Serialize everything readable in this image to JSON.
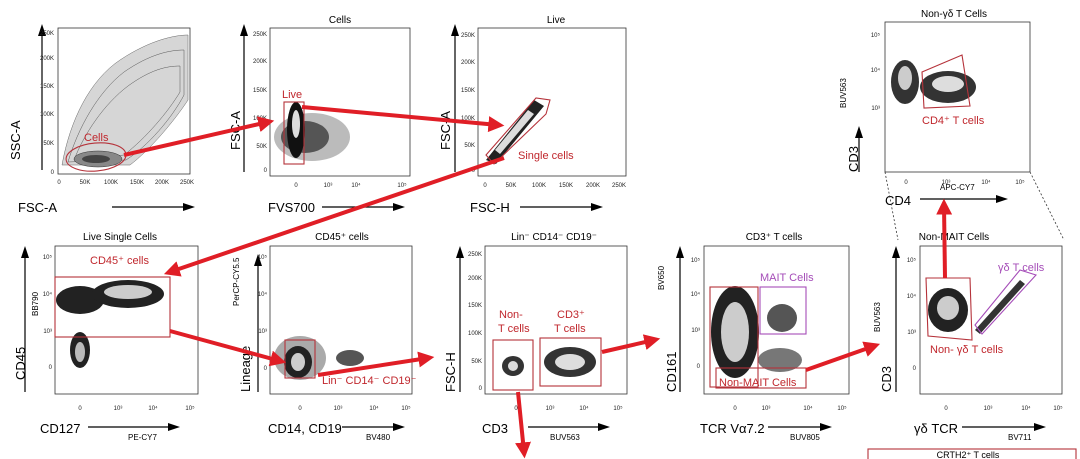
{
  "panels": [
    {
      "id": "p1",
      "title": "",
      "x_label": "FSC-A",
      "x_sub": "",
      "y_label": "SSC-A",
      "y_sub": "",
      "x_ticks": [
        "0",
        "50K",
        "100K",
        "150K",
        "200K",
        "250K"
      ],
      "y_ticks": [
        "0",
        "50K",
        "100K",
        "150K",
        "200K",
        "250K"
      ],
      "gates": [
        {
          "label": "Cells"
        }
      ]
    },
    {
      "id": "p2",
      "title": "Cells",
      "x_label": "FVS700",
      "x_sub": "",
      "y_label": "FSC-A",
      "y_sub": "",
      "x_ticks": [
        "0",
        "10³",
        "10⁴",
        "10⁵"
      ],
      "y_ticks": [
        "0",
        "50K",
        "100K",
        "150K",
        "200K",
        "250K"
      ],
      "gates": [
        {
          "label": "Live"
        }
      ]
    },
    {
      "id": "p3",
      "title": "Live",
      "x_label": "FSC-H",
      "x_sub": "",
      "y_label": "FSC-A",
      "y_sub": "",
      "x_ticks": [
        "0",
        "50K",
        "100K",
        "150K",
        "200K",
        "250K"
      ],
      "y_ticks": [
        "0",
        "50K",
        "100K",
        "150K",
        "200K",
        "250K"
      ],
      "gates": [
        {
          "label": "Single cells"
        }
      ]
    },
    {
      "id": "p4",
      "title": "Non-γδ T Cells",
      "x_label": "CD4",
      "x_sub": "APC-CY7",
      "y_label": "CD3",
      "y_sub": "BUV563",
      "x_ticks": [
        "0",
        "10³",
        "10⁴",
        "10⁵"
      ],
      "y_ticks": [
        "10⁵",
        "10⁴",
        "10³"
      ],
      "gates": [
        {
          "label": "CD4⁺ T cells"
        }
      ]
    },
    {
      "id": "p5",
      "title": "Live Single Cells",
      "x_label": "CD127",
      "x_sub": "PE-CY7",
      "y_label": "CD45",
      "y_sub": "BB790",
      "x_ticks": [
        "0",
        "10³",
        "10⁴",
        "10⁵"
      ],
      "y_ticks": [
        "10⁵",
        "10⁴",
        "10³",
        "0"
      ],
      "gates": [
        {
          "label": "CD45⁺ cells"
        }
      ]
    },
    {
      "id": "p6",
      "title": "CD45⁺ cells",
      "x_label": "CD14, CD19",
      "x_sub": "BV480",
      "y_label": "Lineage",
      "y_sub": "PerCP-CY5.5",
      "x_ticks": [
        "0",
        "10³",
        "10⁴",
        "10⁵"
      ],
      "y_ticks": [
        "10⁵",
        "10⁴",
        "10³",
        "0"
      ],
      "gates": [
        {
          "label": "Lin⁻ CD14⁻ CD19⁻"
        }
      ]
    },
    {
      "id": "p7",
      "title": "Lin⁻ CD14⁻ CD19⁻",
      "x_label": "CD3",
      "x_sub": "BUV563",
      "y_label": "FSC-H",
      "y_sub": "",
      "x_ticks": [
        "0",
        "10³",
        "10⁴",
        "10⁵"
      ],
      "y_ticks": [
        "250K",
        "200K",
        "150K",
        "100K",
        "50K",
        "0"
      ],
      "gates": [
        {
          "label": "Non-",
          "label2": "T cells"
        },
        {
          "label": "CD3⁺",
          "label2": "T cells"
        }
      ]
    },
    {
      "id": "p8",
      "title": "CD3⁺ T cells",
      "x_label": "TCR Vα7.2",
      "x_sub": "BUV805",
      "y_label": "CD161",
      "y_sub": "BV650",
      "x_ticks": [
        "0",
        "10³",
        "10⁴",
        "10⁵"
      ],
      "y_ticks": [
        "10⁵",
        "10⁴",
        "10³",
        "0"
      ],
      "gates": [
        {
          "label": "MAIT Cells"
        },
        {
          "label": "Non-MAIT Cells"
        }
      ]
    },
    {
      "id": "p9",
      "title": "Non-MAIT Cells",
      "x_label": "γδ TCR",
      "x_sub": "BV711",
      "y_label": "CD3",
      "y_sub": "BUV563",
      "x_ticks": [
        "0",
        "10³",
        "10⁴",
        "10⁵"
      ],
      "y_ticks": [
        "10⁵",
        "10⁴",
        "10³",
        "0"
      ],
      "gates": [
        {
          "label": "γδ T cells"
        },
        {
          "label": "Non- γδ T cells"
        }
      ]
    }
  ],
  "partial_panel": {
    "title": "CRTH2⁺ T cells"
  },
  "colors": {
    "gate": "#b5323a",
    "arrow": "#e01e26",
    "mait_gate": "#a54db8"
  }
}
